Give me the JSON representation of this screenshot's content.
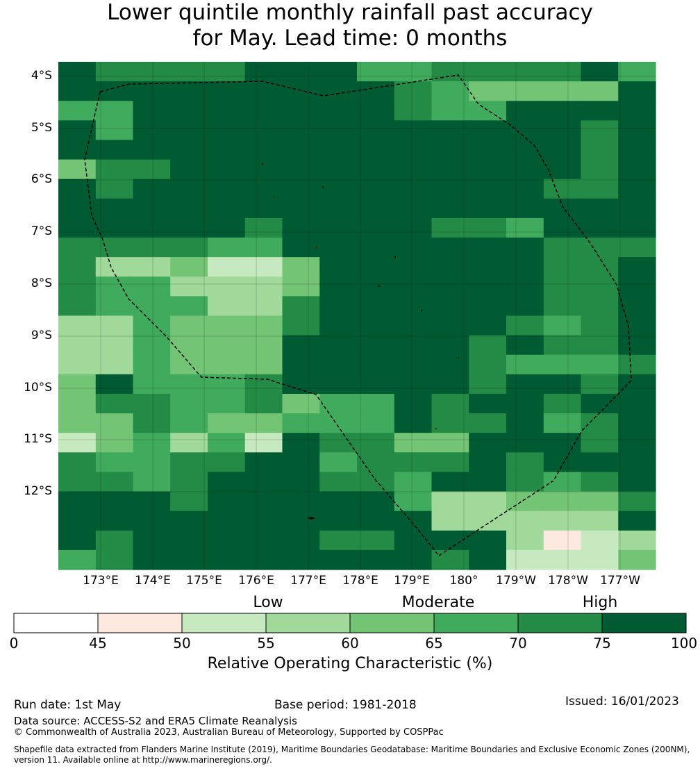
{
  "title": {
    "line1": "Lower quintile monthly rainfall past accuracy",
    "line2": "for May. Lead time: 0 months"
  },
  "map": {
    "lat_labels": [
      "4°S",
      "5°S",
      "6°S",
      "7°S",
      "8°S",
      "9°S",
      "10°S",
      "11°S",
      "12°S"
    ],
    "lon_labels": [
      "173°E",
      "174°E",
      "175°E",
      "176°E",
      "177°E",
      "178°E",
      "179°E",
      "180°",
      "179°W",
      "178°W",
      "177°W"
    ],
    "class_colors": [
      "#ffffff",
      "#fde9e0",
      "#c7e9c0",
      "#a1d99b",
      "#74c476",
      "#41ab5d",
      "#238b45",
      "#005a32"
    ],
    "grid_rows": [
      "7666677755666675",
      "7777777776544447",
      "5577777776557777",
      "7577777777777767",
      "7777777777777767",
      "4667777777777767",
      "7677777777777667",
      "7777777777777777",
      "7777767777665777",
      "6666557777777666",
      "6334224777777667",
      "6553334777777667",
      "6555336777777667",
      "3354446777776567",
      "3354447777767667",
      "3354447777765556",
      "4755567777767767",
      "4665564557677677",
      "4465445557667567",
      "2453527664477767",
      "6556677566676777",
      "6656777665776567",
      "7776777775334446",
      "7777777777333337",
      "7677777667773123",
      "5677777777672224"
    ]
  },
  "colorbar": {
    "categories": [
      "Low",
      "Moderate",
      "High"
    ],
    "ticks": [
      "0",
      "45",
      "50",
      "55",
      "60",
      "65",
      "70",
      "75",
      "100"
    ],
    "title": "Relative Operating Characteristic (%)"
  },
  "footer": {
    "run_date": "Run date: 1st May",
    "base_period": "Base period: 1981-2018",
    "issued": "Issued: 16/01/2023",
    "data_source": "Data source: ACCESS-S2 and ERA5 Climate Reanalysis",
    "copyright": "© Commonwealth of Australia 2023, Australian Bureau of Meteorology, Supported by COSPPac",
    "shapefile_line1": "Shapefile data extracted from Flanders Marine Institute (2019), Maritime Boundaries Geodatabase: Maritime Boundaries and Exclusive Economic Zones (200NM),",
    "shapefile_line2": "version 11. Available online at http://www.marineregions.org/."
  }
}
